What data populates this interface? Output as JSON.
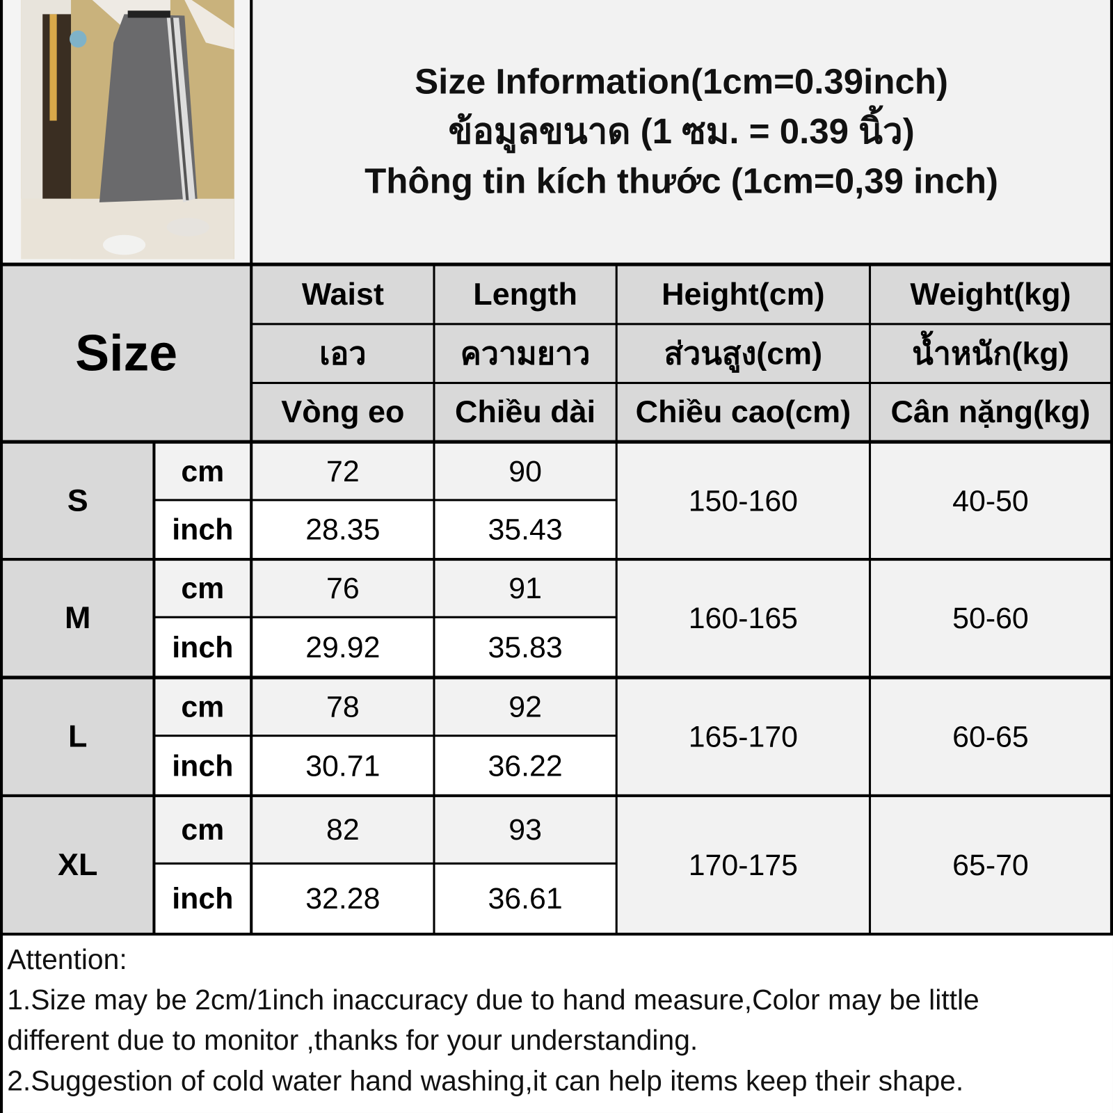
{
  "title": {
    "english": "Size Information(1cm=0.39inch)",
    "thai": "ข้อมูลขนาด (1 ซม. = 0.39 นิ้ว)",
    "vietnamese": "Thông tin kích thước (1cm=0,39 inch)"
  },
  "photo": {
    "subject": "model wearing grey midi skirt with white side stripes"
  },
  "table": {
    "size_header": "Size",
    "columns": [
      {
        "en": "Waist",
        "th": "เอว",
        "vi": "Vòng eo"
      },
      {
        "en": "Length",
        "th": "ความยาว",
        "vi": "Chiều dài"
      },
      {
        "en": "Height(cm)",
        "th": "ส่วนสูง(cm)",
        "vi": "Chiều cao(cm)"
      },
      {
        "en": "Weight(kg)",
        "th": "น้ำหนัก(kg)",
        "vi": "Cân nặng(kg)"
      }
    ],
    "unit_cm": "cm",
    "unit_inch": "inch",
    "rows": [
      {
        "size": "S",
        "waist_cm": "72",
        "length_cm": "90",
        "waist_inch": "28.35",
        "length_inch": "35.43",
        "height": "150-160",
        "weight": "40-50"
      },
      {
        "size": "M",
        "waist_cm": "76",
        "length_cm": "91",
        "waist_inch": "29.92",
        "length_inch": "35.83",
        "height": "160-165",
        "weight": "50-60"
      },
      {
        "size": "L",
        "waist_cm": "78",
        "length_cm": "92",
        "waist_inch": "30.71",
        "length_inch": "36.22",
        "height": "165-170",
        "weight": "60-65"
      },
      {
        "size": "XL",
        "waist_cm": "82",
        "length_cm": "93",
        "waist_inch": "32.28",
        "length_inch": "36.61",
        "height": "170-175",
        "weight": "65-70"
      }
    ]
  },
  "attention": {
    "heading": "Attention:",
    "lines": [
      "1.Size may be 2cm/1inch inaccuracy due to hand measure,Color may be little",
      "different due to monitor ,thanks for your understanding.",
      "2.Suggestion of cold water hand washing,it can help items keep their shape."
    ]
  },
  "colors": {
    "header_bg": "#d9d9d9",
    "light_row": "#f2f2f2",
    "grid": "#000000"
  }
}
